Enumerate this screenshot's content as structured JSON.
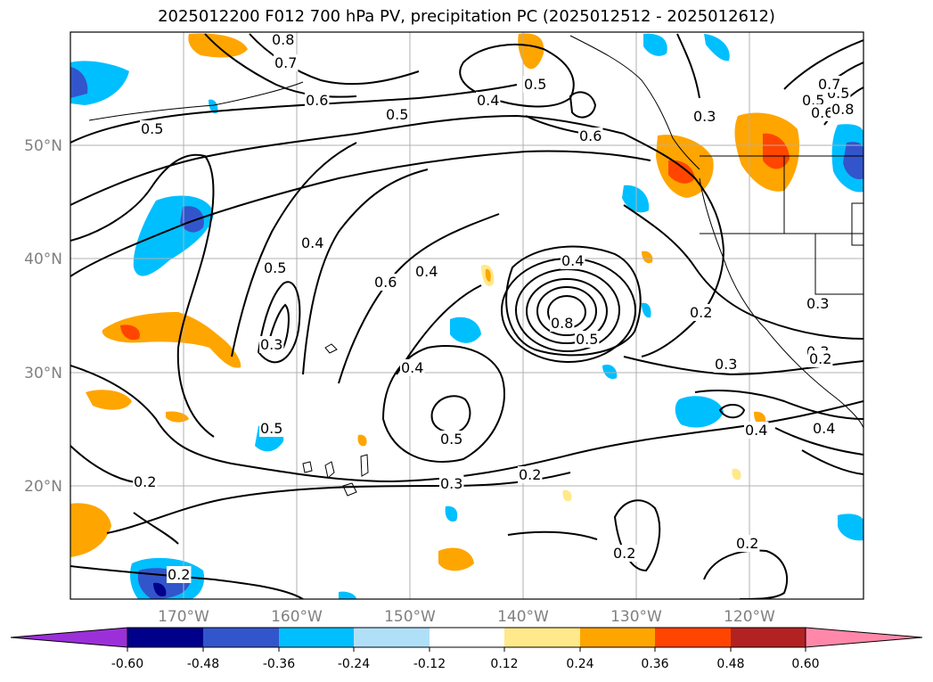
{
  "title": "2025012200 F012 700 hPa PV, precipitation PC (2025012512 - 2025012612)",
  "lat_labels": [
    "50°N",
    "40°N",
    "30°N",
    "20°N"
  ],
  "lon_labels": [
    "170°W",
    "160°W",
    "150°W",
    "140°W",
    "130°W",
    "120°W"
  ],
  "colorbar": {
    "tick_labels": [
      "-0.60",
      "-0.48",
      "-0.36",
      "-0.24",
      "-0.12",
      "0.12",
      "0.24",
      "0.36",
      "0.48",
      "0.60"
    ],
    "colors": [
      "#9b30d9",
      "#00008b",
      "#3355cc",
      "#00bfff",
      "#b0e0f8",
      "#ffffff",
      "#ffe98a",
      "#ffa500",
      "#ff4500",
      "#b22222",
      "#ff88aa"
    ]
  },
  "contour_labels": [
    "0.8",
    "0.7",
    "0.6",
    "0.5",
    "0.5",
    "0.4",
    "0.5",
    "0.6",
    "0.3",
    "0.5",
    "0.6",
    "0.5",
    "0.7",
    "0.8",
    "0.4",
    "0.5",
    "0.3",
    "0.6",
    "0.4",
    "0.4",
    "0.8",
    "0.5",
    "0.2",
    "0.3",
    "0.3",
    "0.3",
    "0.2",
    "0.4",
    "0.5",
    "0.5",
    "0.2",
    "0.3",
    "0.2",
    "0.2",
    "0.2",
    "0.2",
    "0.4",
    "0.4"
  ]
}
